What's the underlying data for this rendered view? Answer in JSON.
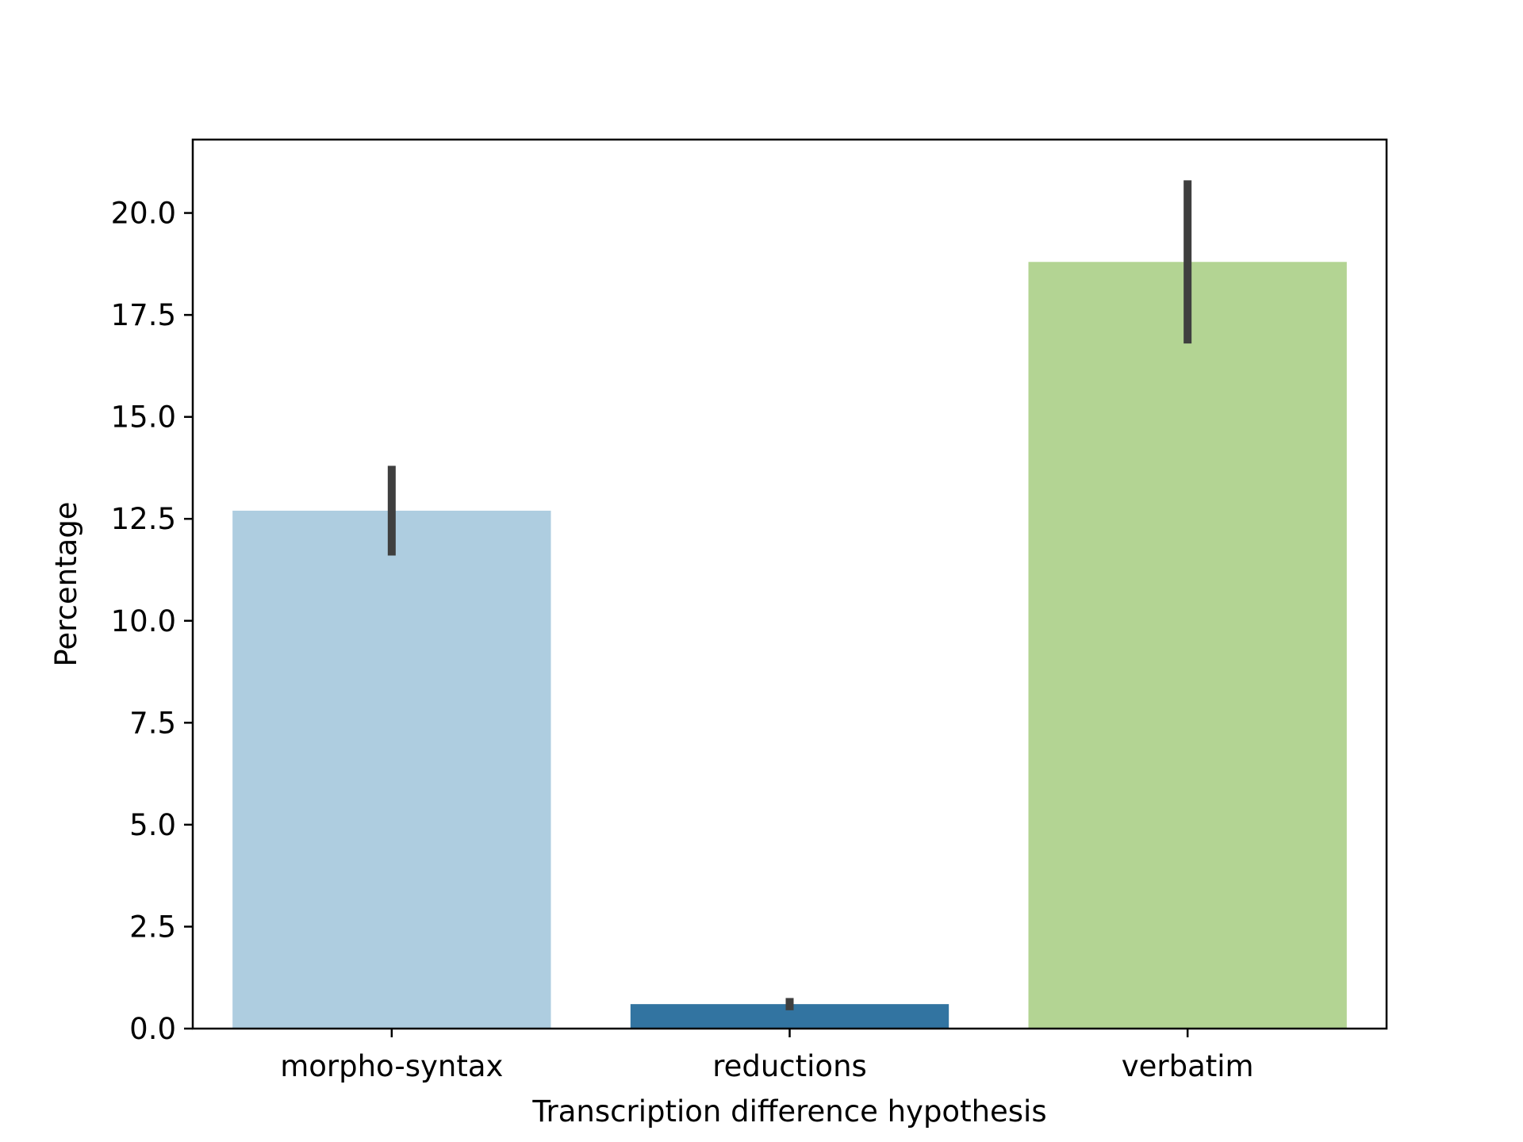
{
  "chart_data": {
    "type": "bar",
    "title": "",
    "xlabel": "Transcription difference hypothesis",
    "ylabel": "Percentage",
    "categories": [
      "morpho-syntax",
      "reductions",
      "verbatim"
    ],
    "values": [
      12.7,
      0.6,
      18.8
    ],
    "error_bars": [
      {
        "low": 11.6,
        "high": 13.8
      },
      {
        "low": 0.45,
        "high": 0.75
      },
      {
        "low": 16.8,
        "high": 20.8
      }
    ],
    "colors": [
      "#aecde0",
      "#3274a1",
      "#b3d493"
    ],
    "error_bar_color": "#3f3f3f",
    "ylim": [
      0,
      21.8
    ],
    "yticks": [
      0,
      2.5,
      5,
      7.5,
      10,
      12.5,
      15,
      17.5,
      20
    ],
    "ytick_labels": [
      "0.0",
      "2.5",
      "5.0",
      "7.5",
      "10.0",
      "12.5",
      "15.0",
      "17.5",
      "20.0"
    ],
    "grid": false,
    "legend": "none"
  }
}
